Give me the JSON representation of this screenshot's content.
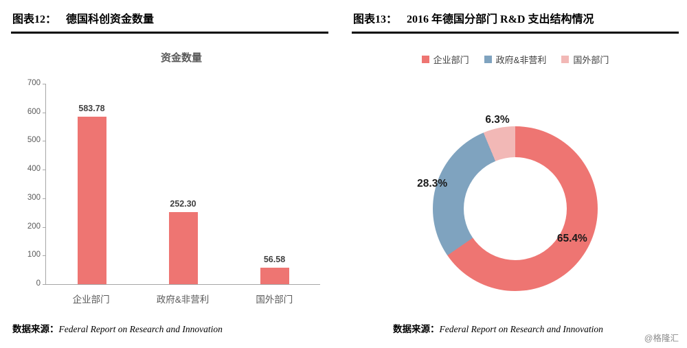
{
  "left_panel": {
    "header_label": "图表12：",
    "header_title": "德国科创资金数量",
    "source_prefix": "数据来源：",
    "source_text": "Federal Report on Research and Innovation"
  },
  "right_panel": {
    "header_label": "图表13：",
    "header_title": "2016 年德国分部门 R&D 支出结构情况",
    "source_prefix": "数据来源：",
    "source_text": "Federal Report on Research and Innovation"
  },
  "watermark": "@格隆汇",
  "colors": {
    "enterprise_red": "#EE7572",
    "government_blue": "#7FA3BF",
    "foreign_pink": "#F2B8B6",
    "axis_gray": "#A6A6A6",
    "label_gray": "#595959"
  },
  "chart_data": [
    {
      "type": "bar",
      "title": "资金数量",
      "categories": [
        "企业部门",
        "政府&非营利",
        "国外部门"
      ],
      "values": [
        583.78,
        252.3,
        56.58
      ],
      "value_labels": [
        "583.78",
        "252.30",
        "56.58"
      ],
      "xlabel": "",
      "ylabel": "",
      "ylim": [
        0,
        700
      ],
      "ytick_step": 100,
      "bar_color": "#EE7572",
      "grid": false,
      "legend_position": "none"
    },
    {
      "type": "pie",
      "subtype": "donut",
      "title": "2016 年德国分部门 R&D 支出结构情况",
      "legend_position": "top",
      "segments": [
        {
          "label": "企业部门",
          "value": 65.4,
          "pct_label": "65.4%",
          "color": "#EE7572"
        },
        {
          "label": "政府&非营利",
          "value": 28.3,
          "pct_label": "28.3%",
          "color": "#7FA3BF"
        },
        {
          "label": "国外部门",
          "value": 6.3,
          "pct_label": "6.3%",
          "color": "#F2B8B6"
        }
      ],
      "start_angle_deg": 0,
      "direction": "clockwise"
    }
  ]
}
